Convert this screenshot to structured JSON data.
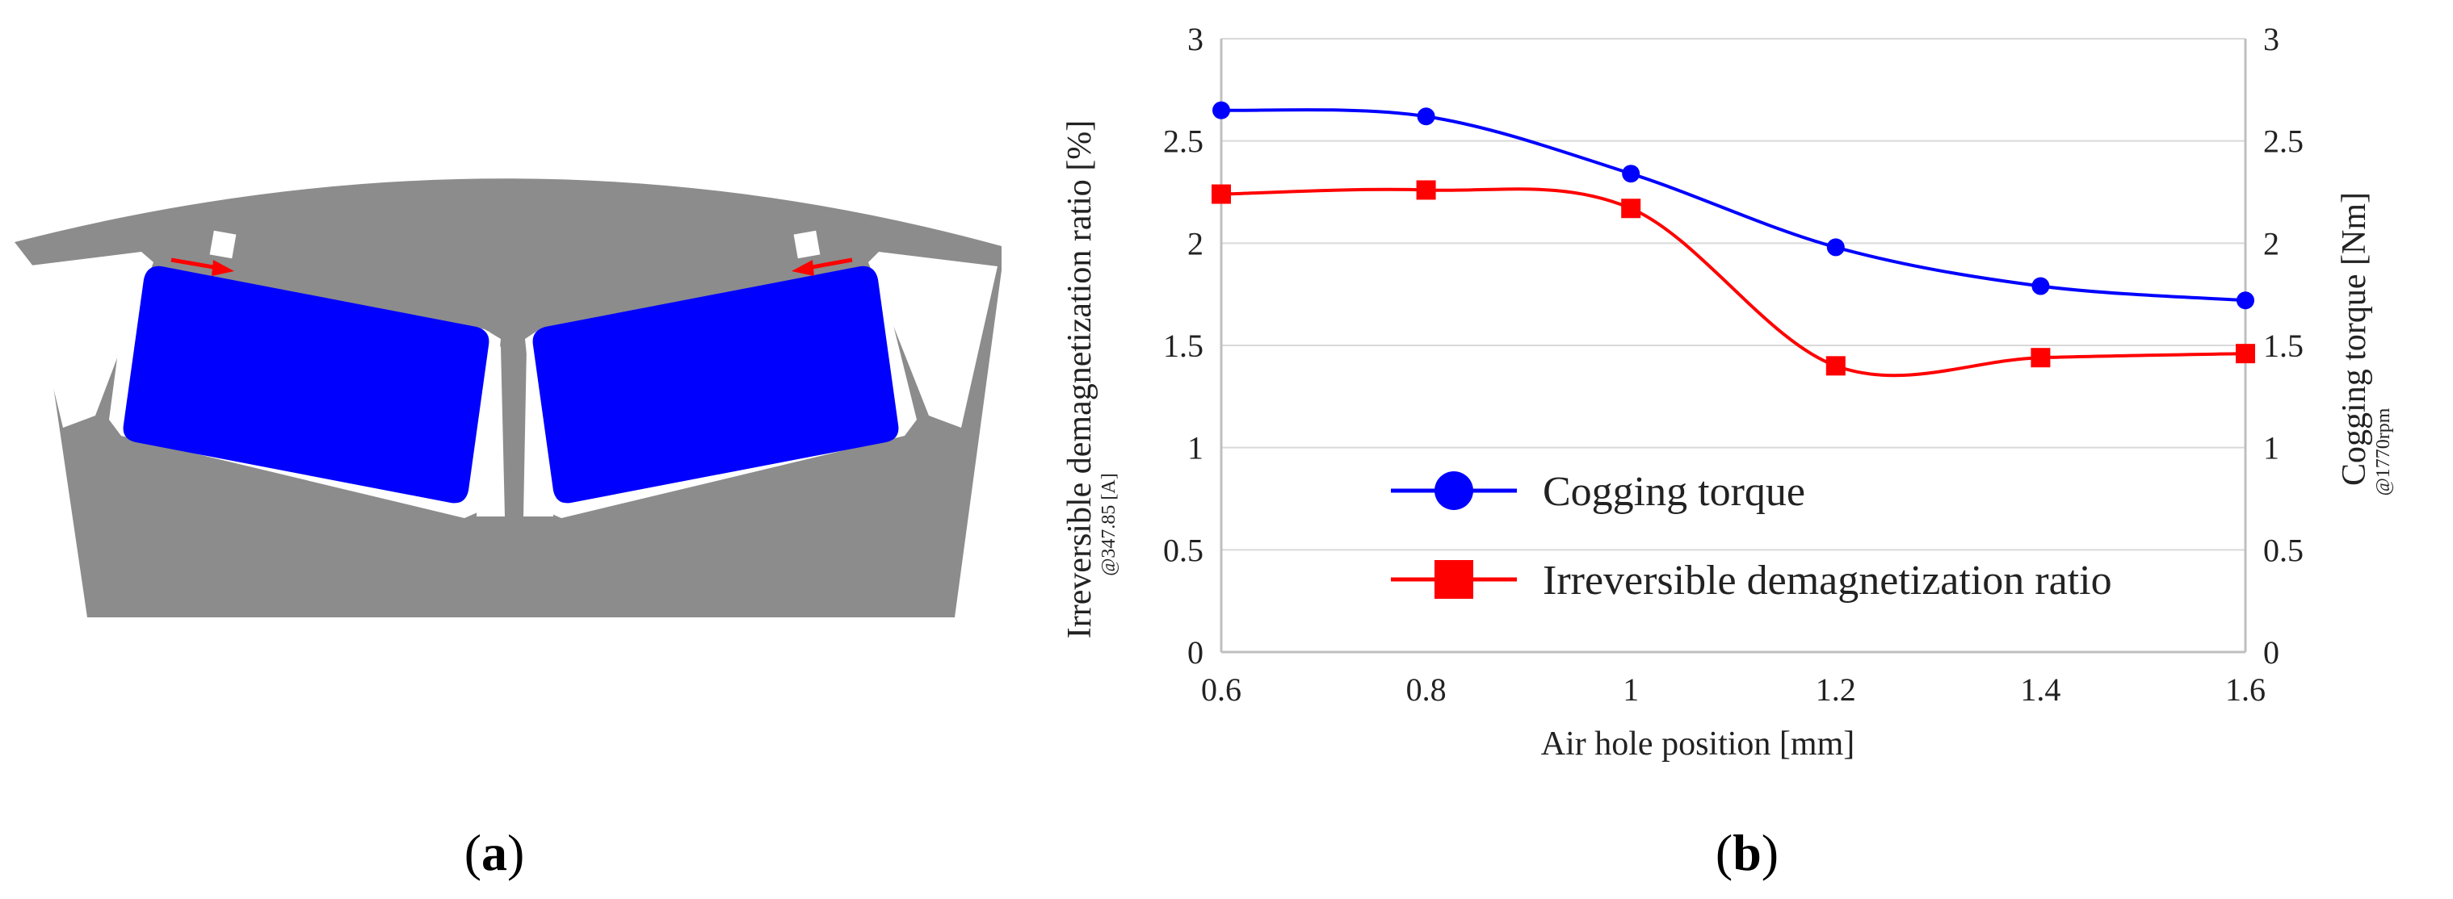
{
  "figure": {
    "panel_a": {
      "paren_open": "(",
      "letter": "a",
      "paren_close": ")"
    },
    "panel_b": {
      "paren_open": "(",
      "letter": "b",
      "paren_close": ")"
    }
  },
  "chart_data": {
    "type": "line",
    "x": [
      0.6,
      0.8,
      1.0,
      1.2,
      1.4,
      1.6
    ],
    "x_tick_labels": [
      "0.6",
      "0.8",
      "1",
      "1.2",
      "1.4",
      "1.6"
    ],
    "xlim": [
      0.6,
      1.6
    ],
    "xlabel": "Air hole position [mm]",
    "ylim_left": [
      0,
      3
    ],
    "ylim_right": [
      0,
      3
    ],
    "y_tick_labels_left": [
      "0",
      "0.5",
      "1",
      "1.5",
      "2",
      "2.5",
      "3"
    ],
    "y_tick_labels_right": [
      "0",
      "0.5",
      "1",
      "1.5",
      "2",
      "2.5",
      "3"
    ],
    "ylabel_left": "Irreversible demagnetization ratio [%]",
    "ylabel_left_sub": "@347.85 [A]",
    "ylabel_right": "Cogging torque [Nm]",
    "ylabel_right_sub": "@1770rpm",
    "grid": "horizontal",
    "series": [
      {
        "name": "Cogging torque",
        "marker": "circle",
        "color": "#0000ff",
        "axis": "right",
        "values": [
          2.65,
          2.62,
          2.34,
          1.98,
          1.79,
          1.72
        ]
      },
      {
        "name": "Irreversible demagnetization ratio",
        "marker": "square",
        "color": "#ff0000",
        "axis": "left",
        "values": [
          2.24,
          2.26,
          2.17,
          1.4,
          1.44,
          1.46
        ]
      }
    ],
    "legend_placement": "lower-left"
  },
  "colors": {
    "steel": "#8c8c8c",
    "magnet": "#0000ff",
    "arrow": "#ff0000",
    "grid": "#d9d9d9"
  }
}
